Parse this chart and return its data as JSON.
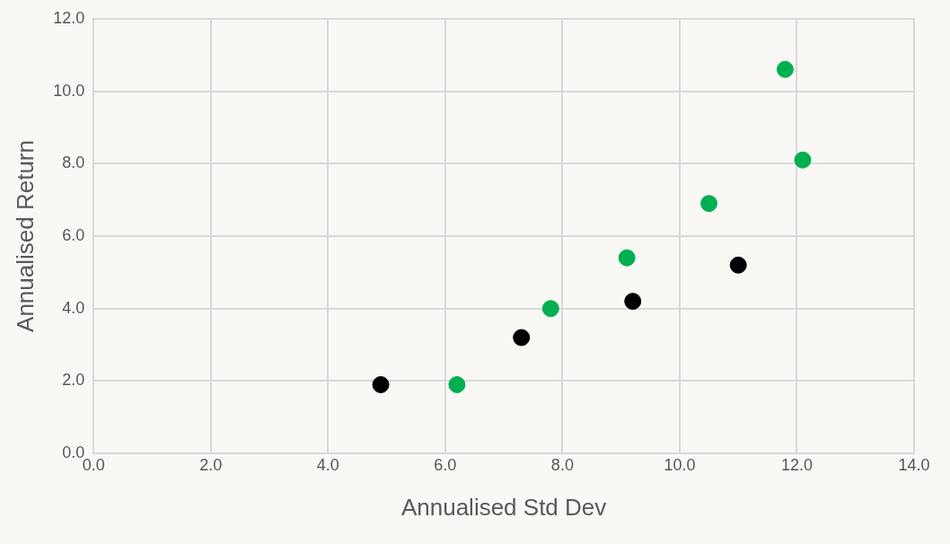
{
  "chart_data": {
    "type": "scatter",
    "xlabel": "Annualised Std Dev",
    "ylabel": "Annualised Return",
    "series": [
      {
        "color": "#00b050",
        "x": [
          11.8,
          12.1,
          10.5,
          9.1,
          7.8,
          6.2
        ],
        "values": [
          10.6,
          8.1,
          6.9,
          5.4,
          4.0,
          1.9
        ]
      },
      {
        "color": "#000000",
        "x": [
          4.9,
          7.3,
          9.2,
          11.0
        ],
        "values": [
          1.9,
          3.2,
          4.2,
          5.2
        ]
      }
    ],
    "xlim": [
      0,
      14
    ],
    "xticks": [
      {
        "value": 0,
        "label": "0.0"
      },
      {
        "value": 2,
        "label": "2.0"
      },
      {
        "value": 4,
        "label": "4.0"
      },
      {
        "value": 6,
        "label": "6.0"
      },
      {
        "value": 8,
        "label": "8.0"
      },
      {
        "value": 10,
        "label": "10.0"
      },
      {
        "value": 12,
        "label": "12.0"
      },
      {
        "value": 14,
        "label": "14.0"
      }
    ],
    "ylim": [
      0,
      12
    ],
    "yticks": [
      {
        "value": 0,
        "label": "0.0"
      },
      {
        "value": 2,
        "label": "2.0"
      },
      {
        "value": 4,
        "label": "4.0"
      },
      {
        "value": 6,
        "label": "6.0"
      },
      {
        "value": 8,
        "label": "8.0"
      },
      {
        "value": 10,
        "label": "10.0"
      },
      {
        "value": 12,
        "label": "12.0"
      }
    ],
    "grid": true,
    "marker": "circle"
  }
}
